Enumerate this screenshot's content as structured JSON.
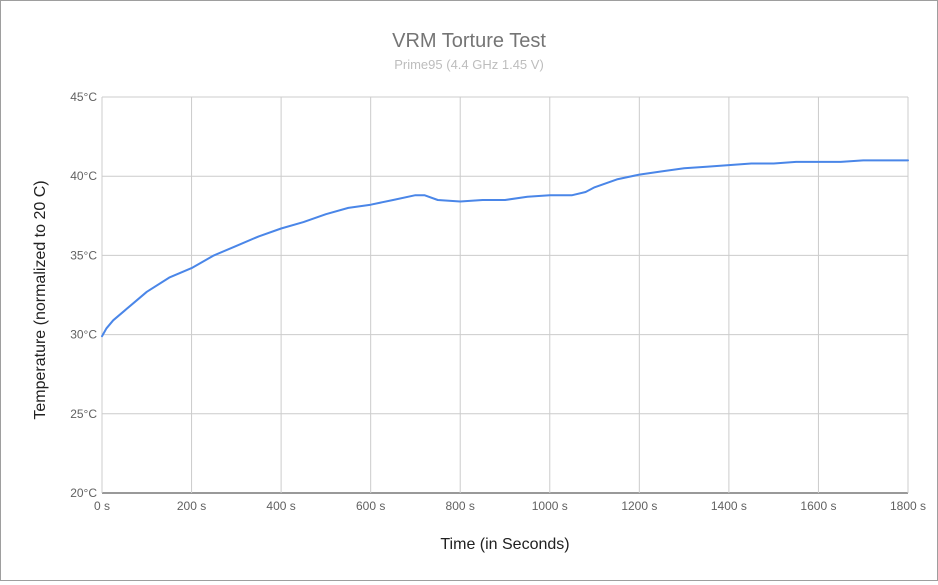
{
  "chart_data": {
    "type": "line",
    "title": "VRM Torture Test",
    "subtitle": "Prime95 (4.4 GHz 1.45 V)",
    "xlabel": "Time (in Seconds)",
    "ylabel": "Temperature (normalized to 20 C)",
    "xlim": [
      0,
      1800
    ],
    "ylim": [
      20,
      45
    ],
    "x_ticks": [
      "0 s",
      "200 s",
      "400 s",
      "600 s",
      "800 s",
      "1000 s",
      "1200 s",
      "1400 s",
      "1600 s",
      "1800 s"
    ],
    "y_ticks": [
      "20°C",
      "25°C",
      "30°C",
      "35°C",
      "40°C",
      "45°C"
    ],
    "grid": true,
    "legend": "none",
    "series": [
      {
        "color": "#4a86e8",
        "x": [
          0,
          10,
          25,
          50,
          75,
          100,
          150,
          200,
          250,
          300,
          350,
          400,
          450,
          500,
          550,
          600,
          650,
          700,
          720,
          750,
          800,
          850,
          900,
          950,
          1000,
          1050,
          1080,
          1100,
          1150,
          1200,
          1250,
          1300,
          1350,
          1400,
          1450,
          1500,
          1550,
          1600,
          1650,
          1700,
          1750,
          1800
        ],
        "values": [
          29.9,
          30.4,
          30.9,
          31.5,
          32.1,
          32.7,
          33.6,
          34.2,
          35.0,
          35.6,
          36.2,
          36.7,
          37.1,
          37.6,
          38.0,
          38.2,
          38.5,
          38.8,
          38.8,
          38.5,
          38.4,
          38.5,
          38.5,
          38.7,
          38.8,
          38.8,
          39.0,
          39.3,
          39.8,
          40.1,
          40.3,
          40.5,
          40.6,
          40.7,
          40.8,
          40.8,
          40.9,
          40.9,
          40.9,
          41.0,
          41.0,
          41.0
        ]
      }
    ]
  }
}
